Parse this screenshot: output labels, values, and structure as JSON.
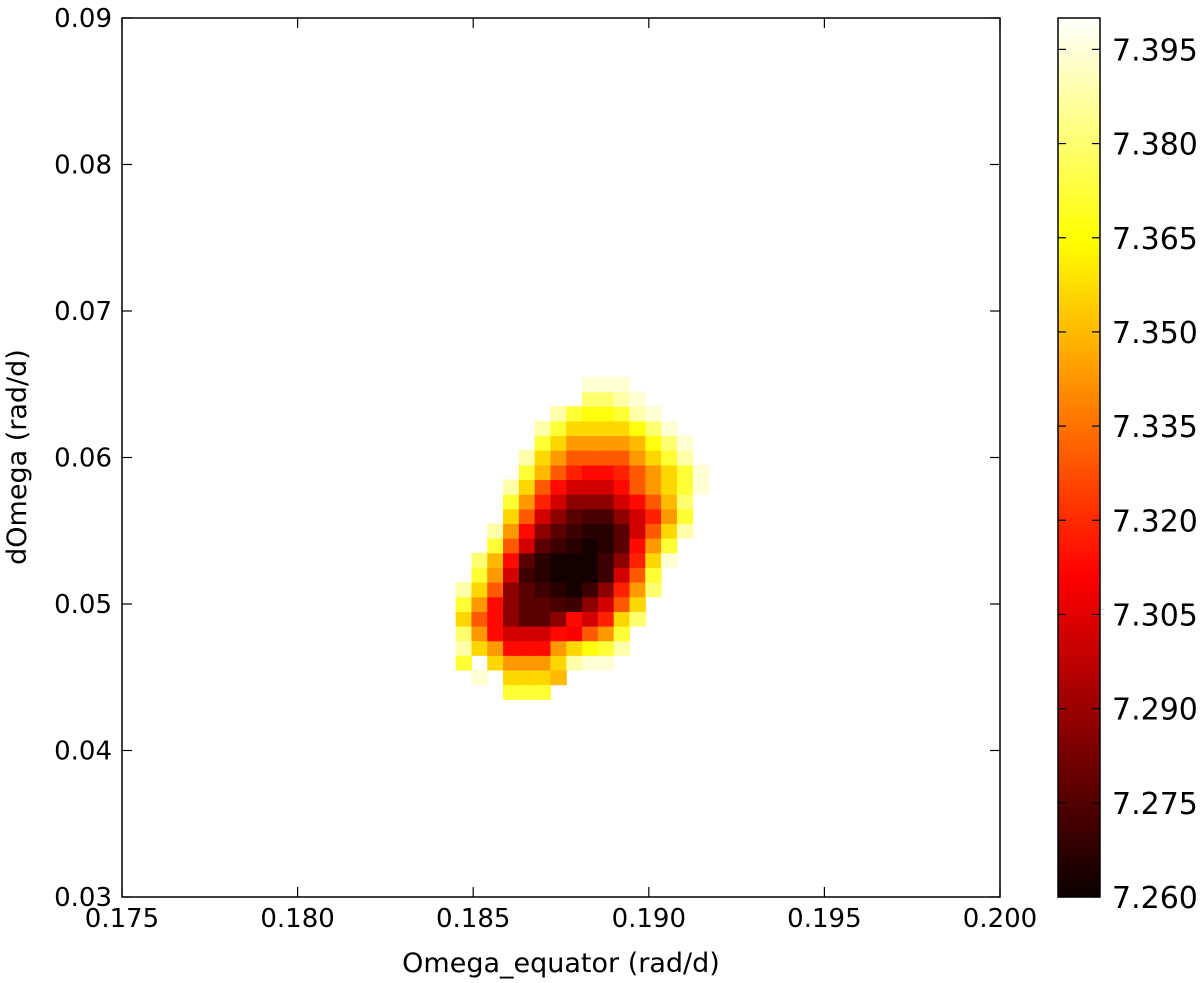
{
  "chart_data": {
    "type": "heatmap",
    "title": "",
    "xlabel": "Omega_equator (rad/d)",
    "ylabel": "dOmega (rad/d)",
    "xlim": [
      0.175,
      0.2
    ],
    "ylim": [
      0.03,
      0.09
    ],
    "xticks": [
      "0.175",
      "0.180",
      "0.185",
      "0.190",
      "0.195",
      "0.200"
    ],
    "yticks": [
      "0.03",
      "0.04",
      "0.05",
      "0.06",
      "0.07",
      "0.08",
      "0.09"
    ],
    "grid": false,
    "colormap": "hot",
    "colorbar": {
      "range": [
        7.26,
        7.4
      ],
      "tick_values": [
        7.26,
        7.275,
        7.29,
        7.305,
        7.32,
        7.335,
        7.35,
        7.365,
        7.38,
        7.395
      ],
      "tick_labels": [
        "7.260",
        "7.275",
        "7.290",
        "7.305",
        "7.320",
        "7.335",
        "7.350",
        "7.365",
        "7.380",
        "7.395"
      ]
    },
    "grid_x": {
      "start": 0.1845,
      "step": 0.00045,
      "count": 16
    },
    "grid_y": {
      "start": 0.0435,
      "step": 0.001,
      "count": 28
    },
    "z_rows": [
      [
        null,
        null,
        null,
        7.372,
        7.372,
        7.372,
        null,
        null,
        null,
        null,
        null,
        null,
        null,
        null,
        null,
        null
      ],
      [
        null,
        7.394,
        null,
        7.356,
        7.356,
        7.356,
        7.35,
        null,
        null,
        null,
        null,
        null,
        null,
        null,
        null,
        null
      ],
      [
        7.372,
        null,
        7.356,
        7.343,
        7.343,
        7.343,
        7.356,
        7.388,
        7.394,
        7.394,
        null,
        null,
        null,
        null,
        null,
        null
      ],
      [
        7.388,
        7.356,
        7.343,
        7.313,
        7.313,
        7.313,
        7.343,
        7.356,
        7.366,
        7.372,
        7.388,
        null,
        null,
        null,
        null,
        null
      ],
      [
        7.38,
        7.343,
        7.313,
        7.3,
        7.3,
        7.3,
        7.313,
        7.308,
        7.33,
        7.343,
        7.372,
        null,
        null,
        null,
        null,
        null
      ],
      [
        7.356,
        7.33,
        7.313,
        7.286,
        7.276,
        7.276,
        7.286,
        7.313,
        7.3,
        7.318,
        7.356,
        7.38,
        null,
        null,
        null,
        null
      ],
      [
        7.372,
        7.343,
        7.313,
        7.286,
        7.276,
        7.276,
        7.272,
        7.27,
        7.286,
        7.3,
        7.33,
        7.356,
        null,
        null,
        null,
        null
      ],
      [
        7.388,
        7.356,
        7.33,
        7.286,
        7.276,
        7.27,
        7.266,
        7.262,
        7.27,
        7.286,
        7.318,
        7.343,
        7.38,
        null,
        null,
        null
      ],
      [
        null,
        7.372,
        7.343,
        7.3,
        7.27,
        7.266,
        7.262,
        7.262,
        7.262,
        7.27,
        7.3,
        7.33,
        7.372,
        null,
        null,
        null
      ],
      [
        null,
        7.38,
        7.35,
        7.313,
        7.276,
        7.266,
        7.262,
        7.262,
        7.262,
        7.27,
        7.286,
        7.318,
        7.356,
        7.394,
        null,
        null
      ],
      [
        null,
        null,
        7.372,
        7.33,
        7.3,
        7.276,
        7.27,
        7.266,
        7.262,
        7.266,
        7.276,
        7.313,
        7.343,
        7.372,
        null,
        null
      ],
      [
        null,
        null,
        7.388,
        7.343,
        7.313,
        7.286,
        7.276,
        7.27,
        7.266,
        7.266,
        7.276,
        7.3,
        7.33,
        7.356,
        7.388,
        null
      ],
      [
        null,
        null,
        null,
        7.356,
        7.33,
        7.3,
        7.286,
        7.276,
        7.272,
        7.272,
        7.286,
        7.3,
        7.318,
        7.343,
        7.372,
        null
      ],
      [
        null,
        null,
        null,
        7.372,
        7.343,
        7.318,
        7.3,
        7.286,
        7.286,
        7.286,
        7.3,
        7.313,
        7.33,
        7.35,
        7.38,
        null
      ],
      [
        null,
        null,
        null,
        7.388,
        7.356,
        7.33,
        7.313,
        7.3,
        7.3,
        7.3,
        7.313,
        7.33,
        7.343,
        7.356,
        7.372,
        7.394
      ],
      [
        null,
        null,
        null,
        null,
        7.372,
        7.35,
        7.33,
        7.318,
        7.313,
        7.313,
        7.318,
        7.33,
        7.343,
        7.356,
        7.372,
        7.394
      ],
      [
        null,
        null,
        null,
        null,
        7.388,
        7.356,
        7.343,
        7.33,
        7.33,
        7.33,
        7.33,
        7.343,
        7.356,
        7.372,
        7.388,
        null
      ],
      [
        null,
        null,
        null,
        null,
        null,
        7.372,
        7.356,
        7.343,
        7.343,
        7.343,
        7.343,
        7.35,
        7.366,
        7.38,
        7.394,
        null
      ],
      [
        null,
        null,
        null,
        null,
        null,
        7.388,
        7.372,
        7.356,
        7.356,
        7.356,
        7.356,
        7.366,
        7.38,
        7.394,
        null,
        null
      ],
      [
        null,
        null,
        null,
        null,
        null,
        null,
        7.388,
        7.372,
        7.366,
        7.366,
        7.372,
        7.388,
        7.394,
        null,
        null,
        null
      ],
      [
        null,
        null,
        null,
        null,
        null,
        null,
        null,
        null,
        7.38,
        7.38,
        7.388,
        7.394,
        null,
        null,
        null,
        null
      ],
      [
        null,
        null,
        null,
        null,
        null,
        null,
        null,
        null,
        7.394,
        7.394,
        7.394,
        null,
        null,
        null,
        null,
        null
      ],
      [
        null,
        null,
        null,
        null,
        null,
        null,
        null,
        null,
        null,
        null,
        null,
        null,
        null,
        null,
        null,
        null
      ],
      [
        null,
        null,
        null,
        null,
        null,
        null,
        null,
        null,
        null,
        null,
        null,
        null,
        null,
        null,
        null,
        null
      ],
      [
        null,
        null,
        null,
        null,
        null,
        null,
        null,
        null,
        null,
        null,
        null,
        null,
        null,
        null,
        null,
        null
      ],
      [
        null,
        null,
        null,
        null,
        null,
        null,
        null,
        null,
        null,
        null,
        null,
        null,
        null,
        null,
        null,
        null
      ],
      [
        null,
        null,
        null,
        null,
        null,
        null,
        null,
        null,
        null,
        null,
        null,
        null,
        null,
        null,
        null,
        null
      ],
      [
        null,
        null,
        null,
        null,
        null,
        null,
        null,
        null,
        null,
        null,
        null,
        null,
        null,
        null,
        null,
        null
      ]
    ]
  }
}
